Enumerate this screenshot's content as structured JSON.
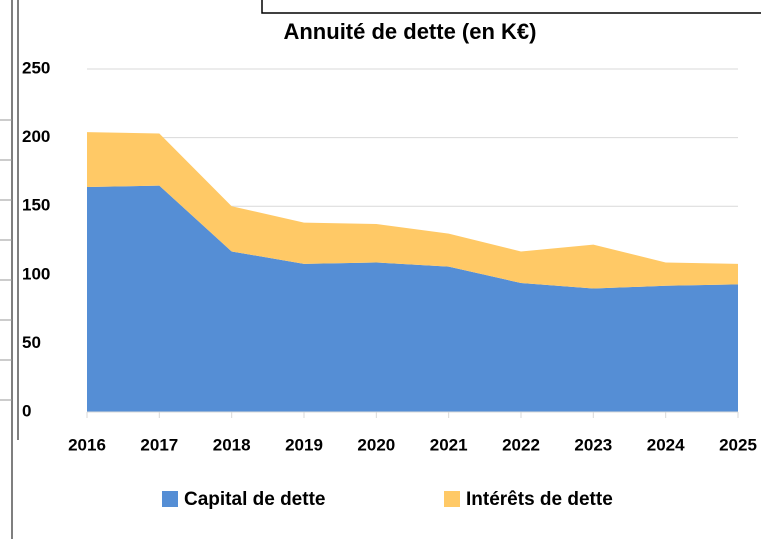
{
  "chart_data": {
    "type": "stacked_area",
    "title": "Annuité de dette (en K€)",
    "categories": [
      "2016",
      "2017",
      "2018",
      "2019",
      "2020",
      "2021",
      "2022",
      "2023",
      "2024",
      "2025"
    ],
    "series": [
      {
        "name": "Capital de dette",
        "color": "#558ed5",
        "values": [
          164,
          165,
          117,
          108,
          109,
          106,
          94,
          90,
          92,
          93
        ]
      },
      {
        "name": "Intérêts de dette",
        "color": "#ffc966",
        "values": [
          40,
          38,
          33,
          30,
          28,
          24,
          23,
          32,
          17,
          15
        ]
      }
    ],
    "ylim": [
      0,
      250
    ],
    "yticks": [
      0,
      50,
      100,
      150,
      200,
      250
    ],
    "grid": true,
    "legend": "bottom"
  }
}
